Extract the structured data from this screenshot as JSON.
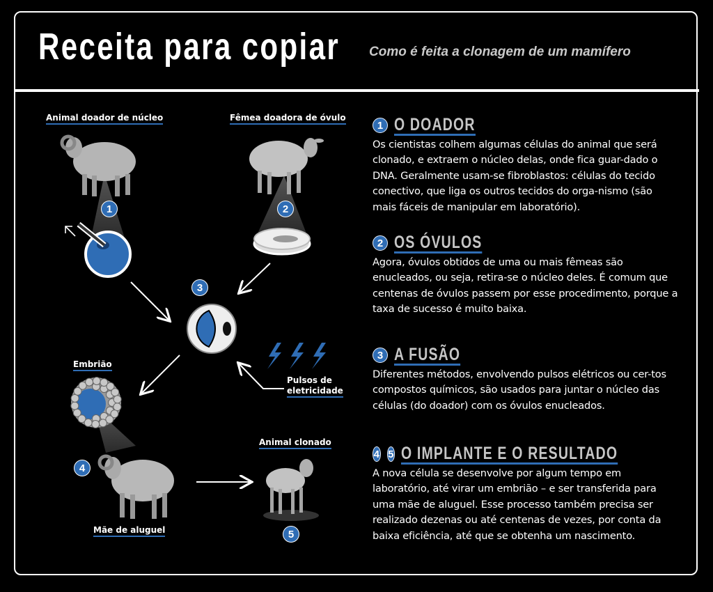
{
  "header": {
    "title": "Receita para copiar",
    "subtitle": "Como é feita a clonagem de um mamífero"
  },
  "colors": {
    "accent": "#2f6db5",
    "background": "#000000",
    "heading": "#c6c6c6",
    "sheep": "#b8b8b8"
  },
  "diagram": {
    "labels": {
      "donor": "Animal doador de núcleo",
      "female": "Fêmea doadora de óvulo",
      "embryo": "Embrião",
      "pulses_line1": "Pulsos de",
      "pulses_line2": "eletricidade",
      "cloned": "Animal clonado",
      "surrogate": "Mãe de aluguel"
    },
    "steps": [
      "1",
      "2",
      "3",
      "4",
      "5"
    ]
  },
  "sections": [
    {
      "numbers": [
        "1"
      ],
      "title": "O DOADOR",
      "body": "Os cientistas colhem algumas células do animal que será clonado, e extraem o núcleo delas, onde fica guar-dado o DNA. Geralmente usam-se fibroblastos: células do tecido conectivo, que liga os outros tecidos do orga-nismo (são mais fáceis de manipular em laboratório)."
    },
    {
      "numbers": [
        "2"
      ],
      "title": "OS ÓVULOS",
      "body": "Agora, óvulos obtidos de uma ou mais fêmeas são enucleados, ou seja, retira-se o núcleo deles. É comum que centenas de óvulos passem por esse procedimento, porque a taxa de sucesso é muito baixa."
    },
    {
      "numbers": [
        "3"
      ],
      "title": "A FUSÃO",
      "body": "Diferentes métodos, envolvendo pulsos elétricos ou cer-tos compostos químicos, são usados para juntar o núcleo das células (do doador) com os óvulos enucleados."
    },
    {
      "numbers": [
        "4",
        "5"
      ],
      "title": "O IMPLANTE E O RESULTADO",
      "body": "A nova célula se desenvolve por algum tempo em laboratório, até virar um embrião – e ser transferida para uma mãe de aluguel. Esse processo também precisa ser realizado dezenas ou até centenas de vezes, por conta da baixa eficiência, até que se obtenha um nascimento."
    }
  ]
}
